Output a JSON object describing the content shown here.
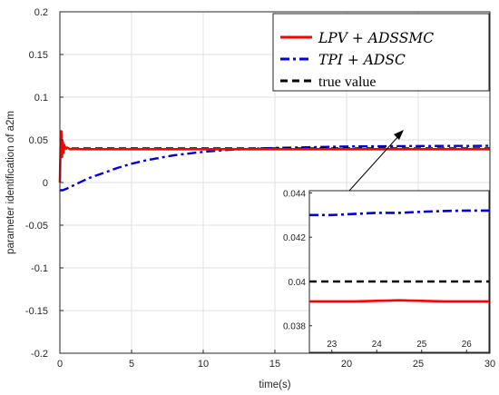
{
  "chart_data": {
    "type": "line",
    "xlabel": "time(s)",
    "ylabel": "parameter identification of a2m",
    "xlim": [
      0,
      30
    ],
    "ylim": [
      -0.2,
      0.2
    ],
    "x_ticks": [
      0,
      5,
      10,
      15,
      20,
      25,
      30
    ],
    "y_ticks": [
      -0.2,
      -0.15,
      -0.1,
      -0.05,
      0,
      0.05,
      0.1,
      0.15,
      0.2
    ],
    "x_tick_labels": [
      "0",
      "5",
      "10",
      "15",
      "20",
      "25",
      "30"
    ],
    "y_tick_labels": [
      "-0.2",
      "-0.15",
      "-0.1",
      "-0.05",
      "0",
      "0.05",
      "0.1",
      "0.15",
      "0.2"
    ],
    "grid": true,
    "legend_position": "top-right",
    "series": [
      {
        "name": "LPV + ADSSMC",
        "color": "#ff0000",
        "style": "solid",
        "x": [
          0,
          0.05,
          0.1,
          0.15,
          0.2,
          0.25,
          0.3,
          0.4,
          0.5,
          0.7,
          1.0,
          1.5,
          2,
          3,
          5,
          10,
          15,
          20,
          25,
          30
        ],
        "y": [
          0.0,
          0.045,
          0.06,
          0.03,
          0.048,
          0.035,
          0.044,
          0.04,
          0.041,
          0.039,
          0.0395,
          0.039,
          0.039,
          0.039,
          0.039,
          0.039,
          0.039,
          0.039,
          0.039,
          0.039
        ]
      },
      {
        "name": "TPI + ADSC",
        "color": "#0000dd",
        "style": "dashdot",
        "x": [
          0,
          0.2,
          0.5,
          1,
          2,
          3,
          4,
          5,
          6,
          7,
          8,
          10,
          12,
          15,
          20,
          25,
          30
        ],
        "y": [
          -0.009,
          -0.009,
          -0.007,
          -0.003,
          0.005,
          0.011,
          0.017,
          0.022,
          0.026,
          0.029,
          0.032,
          0.036,
          0.0385,
          0.0405,
          0.0422,
          0.0428,
          0.043
        ]
      },
      {
        "name": "true value",
        "color": "#000000",
        "style": "dashed",
        "x": [
          0,
          30
        ],
        "y": [
          0.04,
          0.04
        ]
      }
    ],
    "inset": {
      "xlim": [
        22.5,
        26.5
      ],
      "ylim": [
        0.0368,
        0.0441
      ],
      "x_ticks": [
        23,
        24,
        25,
        26
      ],
      "x_tick_labels": [
        "23",
        "24",
        "25",
        "26"
      ],
      "y_ticks": [
        0.038,
        0.04,
        0.042,
        0.044
      ],
      "y_tick_labels": [
        "0.038",
        "0.04",
        "0.042",
        "0.044"
      ],
      "series": [
        {
          "name": "LPV + ADSSMC",
          "x": [
            22.5,
            23.5,
            24.5,
            25.5,
            26.5
          ],
          "y": [
            0.0391,
            0.0391,
            0.03915,
            0.0391,
            0.0391
          ]
        },
        {
          "name": "TPI + ADSC",
          "x": [
            22.5,
            23.0,
            23.5,
            24.0,
            24.5,
            25.0,
            25.5,
            26.0,
            26.5
          ],
          "y": [
            0.043,
            0.043,
            0.04305,
            0.0431,
            0.0431,
            0.04315,
            0.04318,
            0.0432,
            0.0432
          ]
        },
        {
          "name": "true value",
          "x": [
            22.5,
            26.5
          ],
          "y": [
            0.04,
            0.04
          ]
        }
      ]
    }
  }
}
